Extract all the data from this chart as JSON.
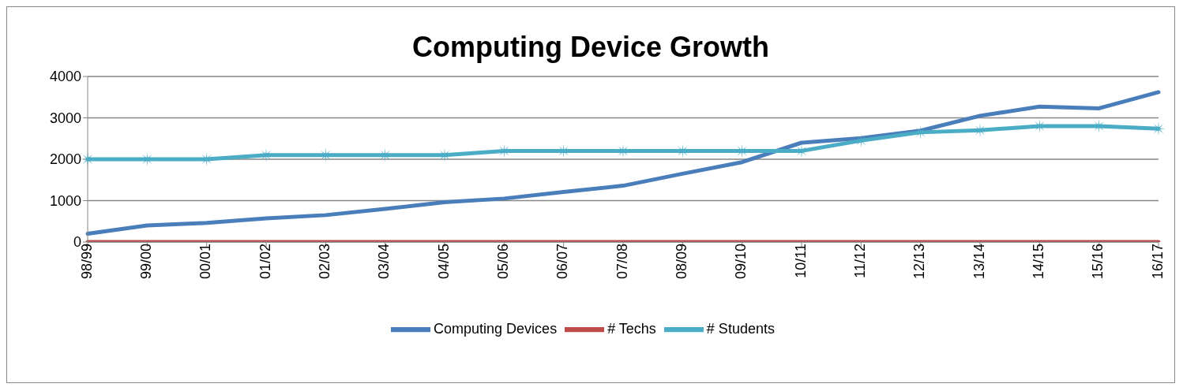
{
  "chart_data": {
    "type": "line",
    "title": "Computing Device Growth",
    "categories": [
      "98/99",
      "99/00",
      "00/01",
      "01/02",
      "02/03",
      "03/04",
      "04/05",
      "05/06",
      "06/07",
      "07/08",
      "08/09",
      "09/10",
      "10/11",
      "11/12",
      "12/13",
      "13/14",
      "14/15",
      "15/16",
      "16/17"
    ],
    "series": [
      {
        "name": "Computing Devices",
        "color": "#4a7ebb",
        "marker": "none",
        "values": [
          200,
          400,
          460,
          570,
          650,
          800,
          960,
          1050,
          1210,
          1360,
          1650,
          1930,
          2400,
          2510,
          2690,
          3050,
          3270,
          3230,
          3620
        ]
      },
      {
        "name": "# Techs",
        "color": "#be4b48",
        "marker": "none",
        "values": [
          0,
          0,
          0,
          0,
          0,
          0,
          0,
          0,
          0,
          0,
          0,
          0,
          0,
          0,
          0,
          0,
          0,
          0,
          0
        ]
      },
      {
        "name": "# Students",
        "color": "#4bacc6",
        "marker": "star",
        "values": [
          2000,
          2000,
          2000,
          2100,
          2100,
          2100,
          2100,
          2200,
          2200,
          2200,
          2200,
          2200,
          2200,
          2450,
          2650,
          2700,
          2800,
          2800,
          2740
        ]
      }
    ],
    "ylim": [
      0,
      4000
    ],
    "yticks": [
      0,
      1000,
      2000,
      3000,
      4000
    ],
    "grid": "y",
    "legend": "bottom",
    "line_style": "solid"
  }
}
